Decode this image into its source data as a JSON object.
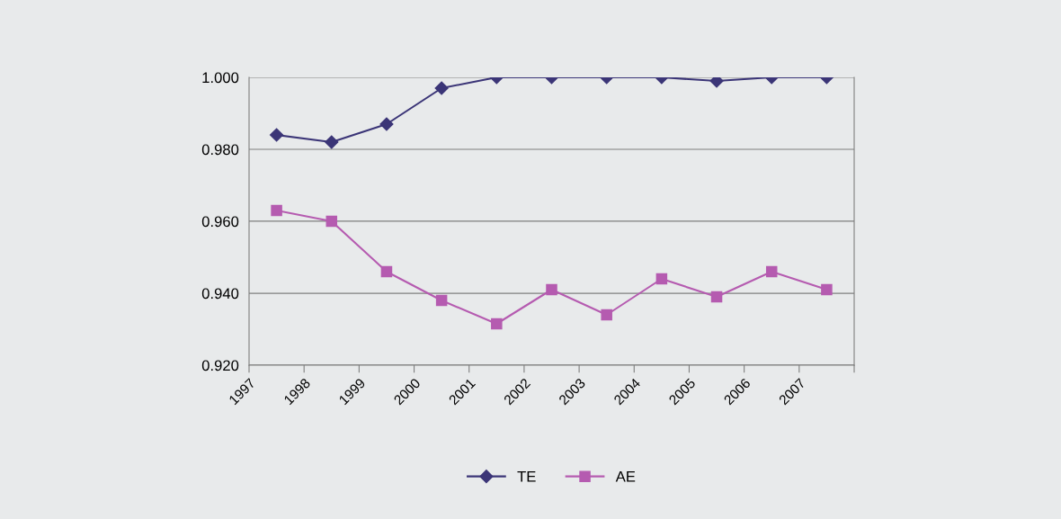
{
  "chart_data": {
    "type": "line",
    "x": [
      1997.5,
      1998.5,
      1999.5,
      2000.5,
      2001.5,
      2002.5,
      2003.5,
      2004.5,
      2005.5,
      2006.5,
      2007.5
    ],
    "xlim": [
      1997,
      2008
    ],
    "xticks": [
      1997,
      1998,
      1999,
      2000,
      2001,
      2002,
      2003,
      2004,
      2005,
      2006,
      2007,
      {
        "value": 2008,
        "label": null
      }
    ],
    "series": [
      {
        "name": "TE",
        "color": "#3b3577",
        "marker": "diamond",
        "values": [
          0.984,
          0.982,
          0.987,
          0.997,
          1.0,
          1.0,
          1.0,
          1.0,
          0.999,
          1.0,
          1.0
        ]
      },
      {
        "name": "AE",
        "color": "#b55bb0",
        "marker": "square",
        "values": [
          0.963,
          0.96,
          0.946,
          0.938,
          0.9315,
          0.941,
          0.934,
          0.944,
          0.939,
          0.946,
          0.941
        ]
      }
    ],
    "ylim": [
      0.92,
      1.0
    ],
    "yticks": [
      {
        "value": 0.92,
        "label": "0.920"
      },
      {
        "value": 0.94,
        "label": "0.940"
      },
      {
        "value": 0.96,
        "label": "0.960"
      },
      {
        "value": 0.98,
        "label": "0.980"
      },
      {
        "value": 1.0,
        "label": "1.000"
      }
    ],
    "grid": "y",
    "legend": "bottom",
    "line_style": "solid"
  }
}
